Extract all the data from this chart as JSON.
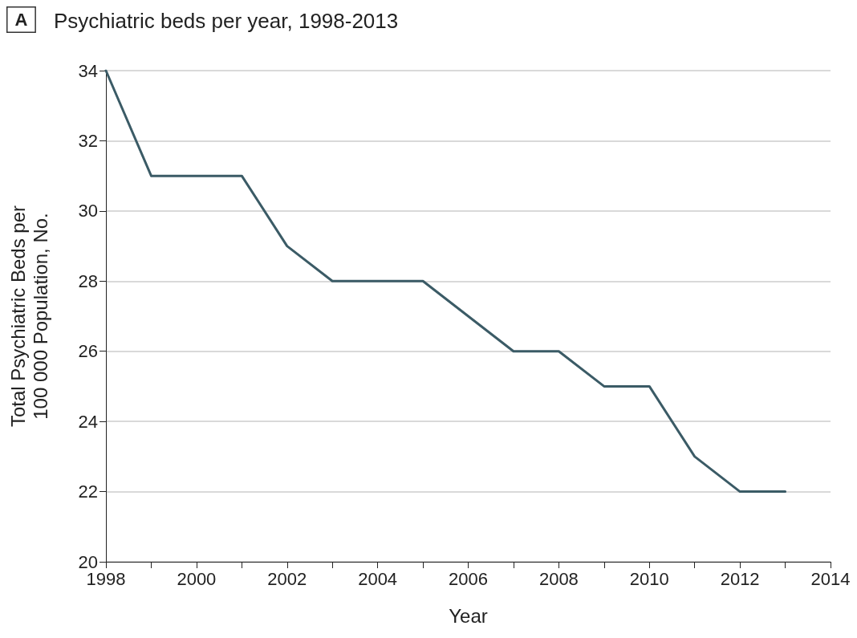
{
  "chart_data": {
    "type": "line",
    "title": "Psychiatric beds per year, 1998-2013",
    "annotations": [
      "A"
    ],
    "xlabel": "Year",
    "ylabel": "Total Psychiatric Beds per\n100 000 Population, No.",
    "x": [
      1998,
      1999,
      2000,
      2001,
      2002,
      2003,
      2004,
      2005,
      2006,
      2007,
      2008,
      2009,
      2010,
      2011,
      2012,
      2013
    ],
    "series": [
      {
        "color": "#3b5b66",
        "values": [
          34,
          31,
          31,
          31,
          29,
          28,
          28,
          28,
          27,
          26,
          26,
          25,
          25,
          23,
          22,
          22
        ]
      }
    ],
    "xlim": [
      1998,
      2014
    ],
    "xticks": [
      1998,
      {
        "value": 1999,
        "label": null
      },
      2000,
      {
        "value": 2001,
        "label": null
      },
      2002,
      {
        "value": 2003,
        "label": null
      },
      2004,
      {
        "value": 2005,
        "label": null
      },
      2006,
      {
        "value": 2007,
        "label": null
      },
      2008,
      {
        "value": 2009,
        "label": null
      },
      2010,
      {
        "value": 2011,
        "label": null
      },
      2012,
      {
        "value": 2013,
        "label": null
      },
      2014
    ],
    "ylim": [
      20,
      34
    ],
    "yticks": [
      20,
      22,
      24,
      26,
      28,
      30,
      32,
      34
    ],
    "grid": "y",
    "marker": "none",
    "line_style": "solid"
  }
}
